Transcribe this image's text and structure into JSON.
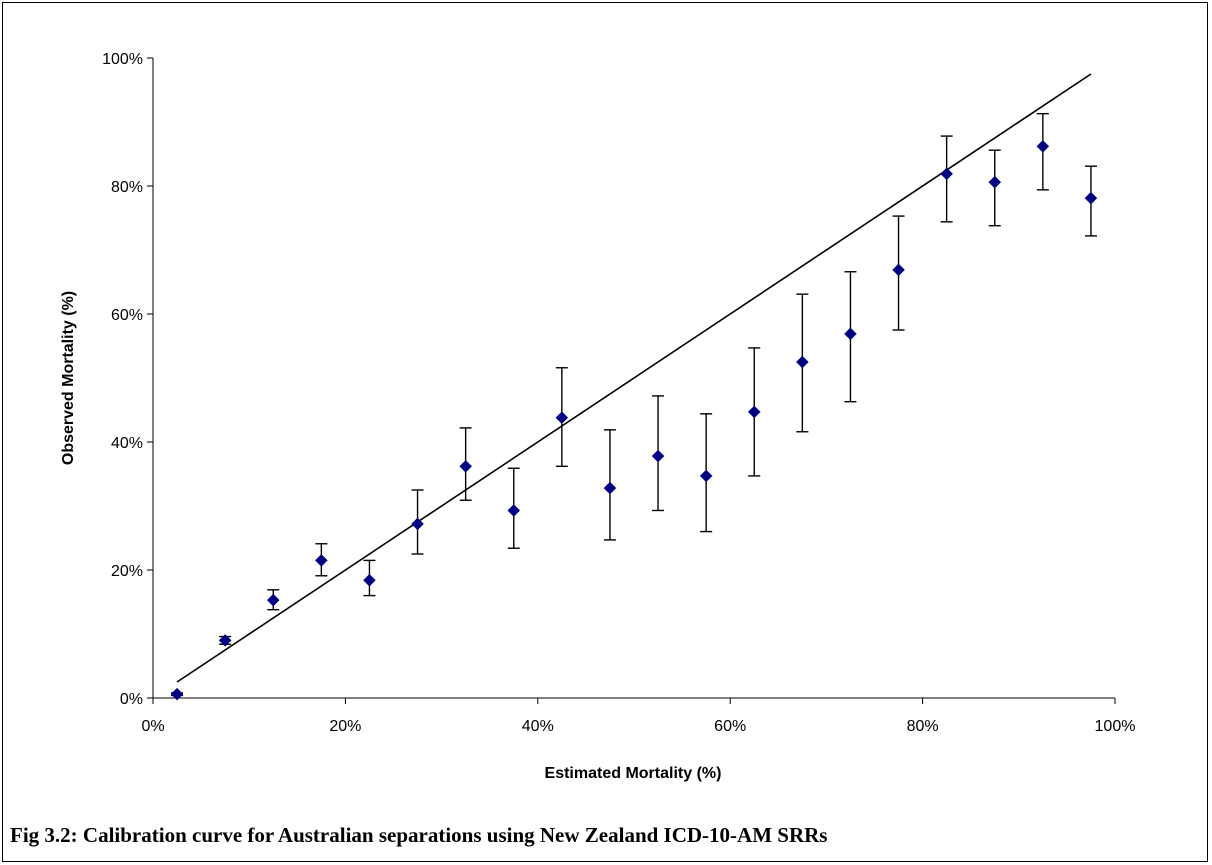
{
  "caption": "Fig 3.2: Calibration curve for Australian separations using New Zealand ICD-10-AM SRRs",
  "chart_data": {
    "type": "scatter",
    "xlabel": "Estimated Mortality (%)",
    "ylabel": "Observed Mortality (%)",
    "xlim": [
      0,
      100
    ],
    "ylim": [
      0,
      100
    ],
    "x_ticks": [
      "0%",
      "20%",
      "40%",
      "60%",
      "80%",
      "100%"
    ],
    "y_ticks": [
      "0%",
      "20%",
      "40%",
      "60%",
      "80%",
      "100%"
    ],
    "grid": false,
    "legend": "none",
    "marker_color": "#000080",
    "reference_line": {
      "x": [
        2.5,
        97.5
      ],
      "y": [
        2.5,
        97.5
      ]
    },
    "points": [
      {
        "x": 2.5,
        "y": 0.6,
        "lo": 0.4,
        "hi": 0.8
      },
      {
        "x": 7.5,
        "y": 9.0,
        "lo": 8.4,
        "hi": 9.6
      },
      {
        "x": 12.5,
        "y": 15.3,
        "lo": 13.8,
        "hi": 16.9
      },
      {
        "x": 17.5,
        "y": 21.5,
        "lo": 19.1,
        "hi": 24.1
      },
      {
        "x": 22.5,
        "y": 18.4,
        "lo": 16.0,
        "hi": 21.5
      },
      {
        "x": 27.5,
        "y": 27.2,
        "lo": 22.5,
        "hi": 32.5
      },
      {
        "x": 32.5,
        "y": 36.2,
        "lo": 30.9,
        "hi": 42.2
      },
      {
        "x": 37.5,
        "y": 29.3,
        "lo": 23.4,
        "hi": 35.9
      },
      {
        "x": 42.5,
        "y": 43.8,
        "lo": 36.2,
        "hi": 51.6
      },
      {
        "x": 47.5,
        "y": 32.8,
        "lo": 24.7,
        "hi": 41.9
      },
      {
        "x": 52.5,
        "y": 37.8,
        "lo": 29.3,
        "hi": 47.2
      },
      {
        "x": 57.5,
        "y": 34.7,
        "lo": 26.0,
        "hi": 44.4
      },
      {
        "x": 62.5,
        "y": 44.7,
        "lo": 34.7,
        "hi": 54.7
      },
      {
        "x": 67.5,
        "y": 52.5,
        "lo": 41.6,
        "hi": 63.1
      },
      {
        "x": 72.5,
        "y": 56.9,
        "lo": 46.3,
        "hi": 66.6
      },
      {
        "x": 77.5,
        "y": 66.9,
        "lo": 57.5,
        "hi": 75.3
      },
      {
        "x": 82.5,
        "y": 81.9,
        "lo": 74.4,
        "hi": 87.8
      },
      {
        "x": 87.5,
        "y": 80.6,
        "lo": 73.8,
        "hi": 85.6
      },
      {
        "x": 92.5,
        "y": 86.2,
        "lo": 79.4,
        "hi": 91.3
      },
      {
        "x": 97.5,
        "y": 78.1,
        "lo": 72.2,
        "hi": 83.1
      }
    ]
  }
}
